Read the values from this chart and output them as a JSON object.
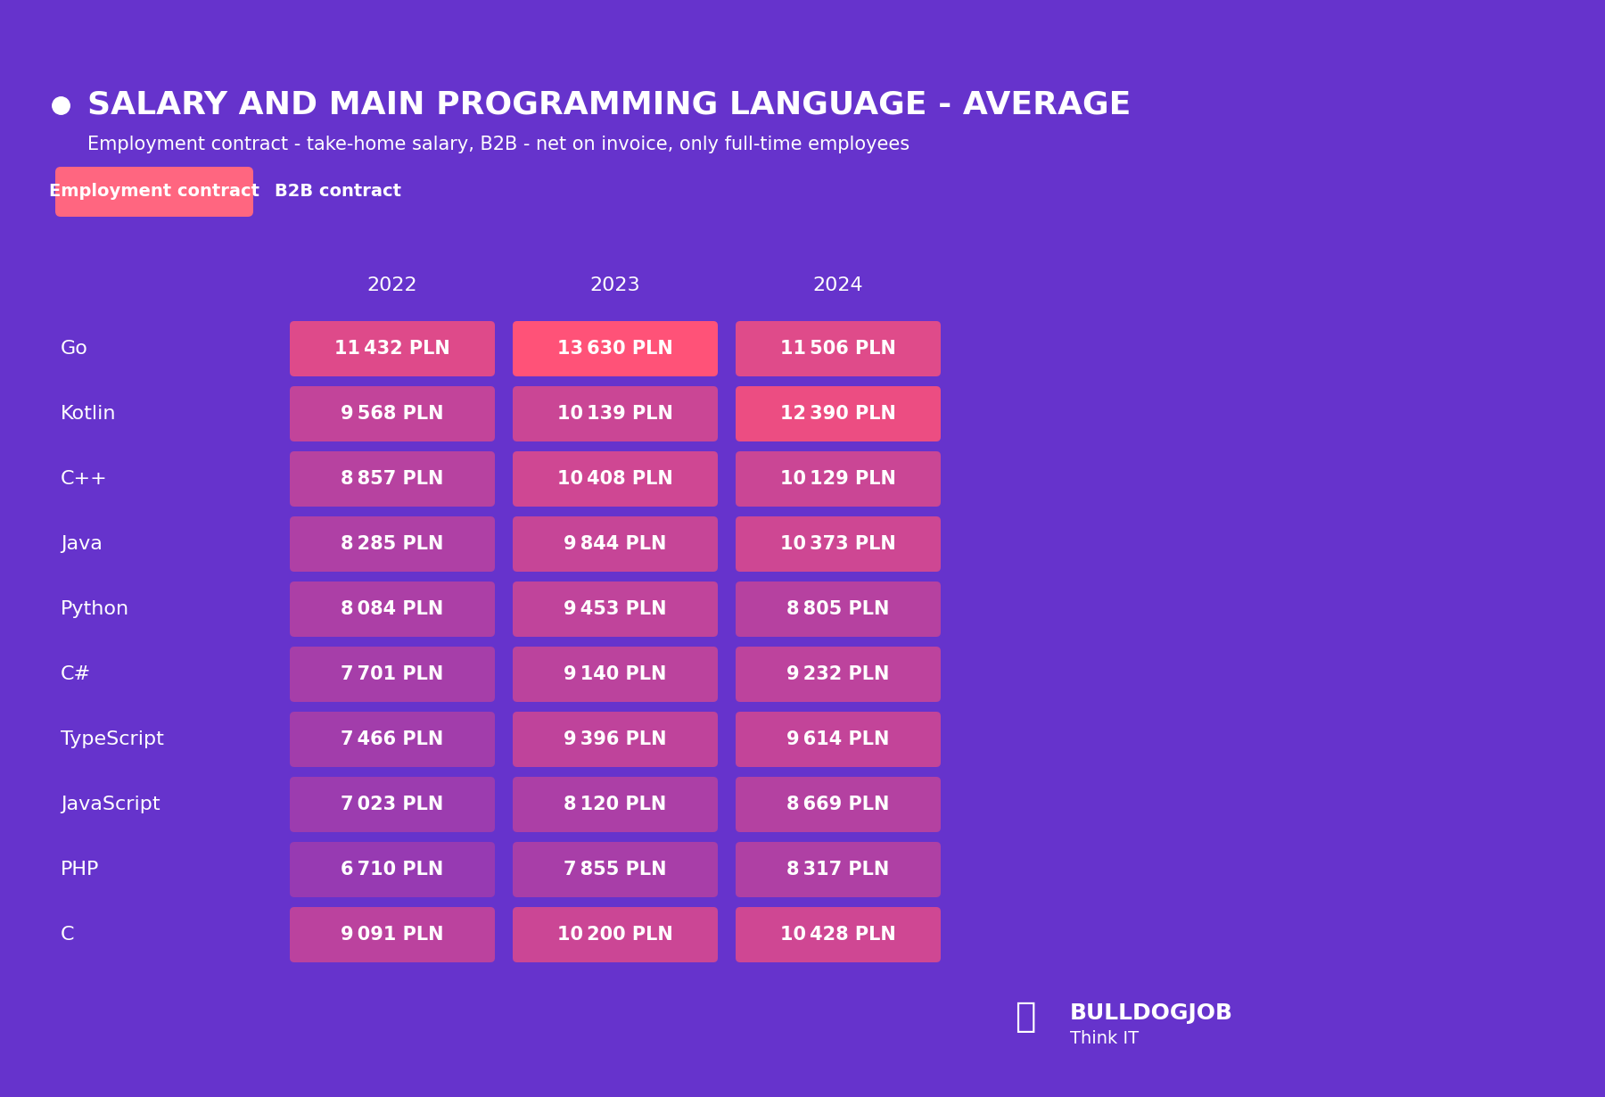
{
  "background_color": "#6633CC",
  "title": "SALARY AND MAIN PROGRAMMING LANGUAGE - AVERAGE",
  "subtitle": "Employment contract - take-home salary, B2B - net on invoice, only full-time employees",
  "tab_active": "Employment contract",
  "tab_inactive": "B2B contract",
  "tab_active_color": "#FF6680",
  "years": [
    "2022",
    "2023",
    "2024"
  ],
  "languages": [
    "Go",
    "Kotlin",
    "C++",
    "Java",
    "Python",
    "C#",
    "TypeScript",
    "JavaScript",
    "PHP",
    "C"
  ],
  "values": {
    "Go": [
      11432,
      13630,
      11506
    ],
    "Kotlin": [
      9568,
      10139,
      12390
    ],
    "C++": [
      8857,
      10408,
      10129
    ],
    "Java": [
      8285,
      9844,
      10373
    ],
    "Python": [
      8084,
      9453,
      8805
    ],
    "C#": [
      7701,
      9140,
      9232
    ],
    "TypeScript": [
      7466,
      9396,
      9614
    ],
    "JavaScript": [
      7023,
      8120,
      8669
    ],
    "PHP": [
      6710,
      7855,
      8317
    ],
    "C": [
      9091,
      10200,
      10428
    ]
  },
  "max_value": 13630,
  "min_value": 6000,
  "color_low_r": 0.55,
  "color_low_g": 0.22,
  "color_low_b": 0.72,
  "color_high_r": 1.0,
  "color_high_g": 0.32,
  "color_high_b": 0.47,
  "text_color": "#FFFFFF"
}
